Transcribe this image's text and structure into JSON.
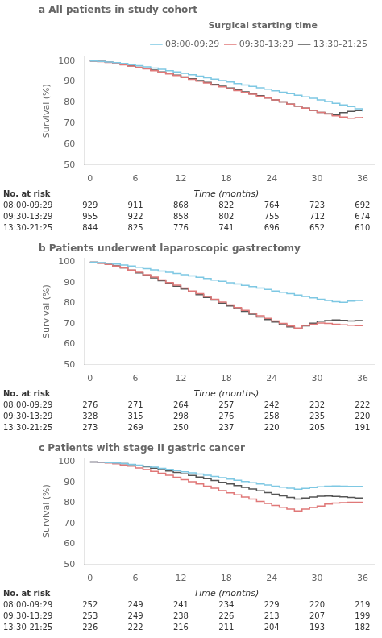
{
  "chart_data": [
    {
      "type": "step",
      "title": "a All patients in study cohort",
      "x": [
        0,
        1,
        2,
        3,
        4,
        5,
        6,
        7,
        8,
        9,
        10,
        11,
        12,
        13,
        14,
        15,
        16,
        17,
        18,
        19,
        20,
        21,
        22,
        23,
        24,
        25,
        26,
        27,
        28,
        29,
        30,
        31,
        32,
        33,
        34,
        35,
        36
      ],
      "xlabel": "Time (months)",
      "ylabel": "Survival (%)",
      "xlim": [
        -0.8,
        37.5
      ],
      "xticks": [
        0,
        6,
        12,
        18,
        24,
        30,
        36
      ],
      "ylim": [
        50,
        102
      ],
      "yticks": [
        50,
        60,
        70,
        80,
        90,
        100
      ],
      "grid": false,
      "legend": "upper right",
      "legend_title": "Surgical starting time",
      "series": [
        {
          "name": "08:00-09:29",
          "color": "#7EC8E3",
          "values": [
            100,
            99.8,
            99.5,
            99.2,
            98.8,
            98.3,
            97.8,
            97.2,
            96.6,
            96.0,
            95.4,
            94.8,
            94.1,
            93.4,
            92.7,
            92.0,
            91.3,
            90.6,
            89.9,
            89.2,
            88.5,
            87.8,
            87.1,
            86.4,
            85.7,
            85.0,
            84.3,
            83.5,
            82.8,
            82.1,
            81.3,
            80.5,
            79.7,
            78.9,
            78.1,
            77.0,
            75.8
          ]
        },
        {
          "name": "09:30-13:29",
          "color": "#E07878",
          "values": [
            100,
            99.7,
            99.3,
            98.8,
            98.2,
            97.6,
            96.9,
            96.2,
            95.4,
            94.6,
            93.8,
            93.0,
            92.1,
            91.2,
            90.3,
            89.4,
            88.5,
            87.6,
            86.7,
            85.8,
            84.9,
            84.0,
            83.1,
            82.2,
            81.3,
            80.3,
            79.3,
            78.3,
            77.3,
            76.3,
            75.3,
            74.5,
            73.7,
            73.1,
            72.5,
            72.8,
            73.2
          ]
        },
        {
          "name": "13:30-21:25",
          "color": "#555555",
          "values": [
            100,
            99.8,
            99.4,
            98.9,
            98.3,
            97.7,
            97.0,
            96.3,
            95.6,
            94.8,
            94.0,
            93.2,
            92.4,
            91.5,
            90.6,
            89.7,
            88.8,
            87.9,
            87.0,
            86.1,
            85.2,
            84.2,
            83.3,
            82.3,
            81.3,
            80.3,
            79.3,
            78.3,
            77.3,
            76.3,
            75.3,
            74.6,
            74.0,
            75.2,
            75.8,
            76.2,
            76.5
          ]
        }
      ],
      "at_risk": {
        "title": "No. at risk",
        "rows": [
          {
            "name": "08:00-09:29",
            "values": [
              929,
              911,
              868,
              822,
              764,
              723,
              692
            ]
          },
          {
            "name": "09:30-13:29",
            "values": [
              955,
              922,
              858,
              802,
              755,
              712,
              674
            ]
          },
          {
            "name": "13:30-21:25",
            "values": [
              844,
              825,
              776,
              741,
              696,
              652,
              610
            ]
          }
        ]
      }
    },
    {
      "type": "step",
      "title": "b Patients underwent laparoscopic gastrectomy",
      "x": [
        0,
        1,
        2,
        3,
        4,
        5,
        6,
        7,
        8,
        9,
        10,
        11,
        12,
        13,
        14,
        15,
        16,
        17,
        18,
        19,
        20,
        21,
        22,
        23,
        24,
        25,
        26,
        27,
        28,
        29,
        30,
        31,
        32,
        33,
        34,
        35,
        36
      ],
      "xlabel": "Time (months)",
      "ylabel": "Survival (%)",
      "xlim": [
        -0.8,
        37.5
      ],
      "xticks": [
        0,
        6,
        12,
        18,
        24,
        30,
        36
      ],
      "ylim": [
        50,
        102
      ],
      "yticks": [
        50,
        60,
        70,
        80,
        90,
        100
      ],
      "grid": false,
      "series": [
        {
          "name": "08:00-09:29",
          "color": "#7EC8E3",
          "values": [
            100,
            99.8,
            99.5,
            99.1,
            98.6,
            98.1,
            97.5,
            96.9,
            96.3,
            95.7,
            95.1,
            94.5,
            93.9,
            93.3,
            92.6,
            92.0,
            91.3,
            90.7,
            90.0,
            89.4,
            88.7,
            88.1,
            87.4,
            86.7,
            86.0,
            85.4,
            84.7,
            84.0,
            83.3,
            82.6,
            81.9,
            81.3,
            80.8,
            80.5,
            81.0,
            81.3,
            81.5
          ]
        },
        {
          "name": "09:30-13:29",
          "color": "#E07878",
          "values": [
            100,
            99.5,
            98.9,
            98.1,
            97.2,
            96.2,
            95.1,
            93.9,
            92.7,
            91.4,
            90.1,
            88.8,
            87.4,
            86.0,
            84.7,
            83.3,
            81.9,
            80.6,
            79.2,
            77.9,
            76.5,
            75.2,
            73.9,
            72.6,
            71.3,
            70.1,
            68.9,
            67.9,
            69.2,
            69.8,
            70.3,
            70.1,
            69.8,
            69.5,
            69.3,
            69.1,
            69.0
          ]
        },
        {
          "name": "13:30-21:25",
          "color": "#555555",
          "values": [
            100,
            99.6,
            99.0,
            98.2,
            97.2,
            96.1,
            94.8,
            93.6,
            92.3,
            91.0,
            89.7,
            88.3,
            86.9,
            85.6,
            84.2,
            82.8,
            81.5,
            80.1,
            78.7,
            77.4,
            76.0,
            74.7,
            73.3,
            72.0,
            70.8,
            69.6,
            68.5,
            67.5,
            69.0,
            70.2,
            71.2,
            71.5,
            71.8,
            71.6,
            71.3,
            71.5,
            71.5
          ]
        }
      ],
      "at_risk": {
        "title": "No. at risk",
        "rows": [
          {
            "name": "08:00-09:29",
            "values": [
              276,
              271,
              264,
              257,
              242,
              232,
              222
            ]
          },
          {
            "name": "09:30-13:29",
            "values": [
              328,
              315,
              298,
              276,
              258,
              235,
              220
            ]
          },
          {
            "name": "13:30-21:25",
            "values": [
              273,
              269,
              250,
              237,
              220,
              205,
              191
            ]
          }
        ]
      }
    },
    {
      "type": "step",
      "title": "c Patients with stage II gastric cancer",
      "x": [
        0,
        1,
        2,
        3,
        4,
        5,
        6,
        7,
        8,
        9,
        10,
        11,
        12,
        13,
        14,
        15,
        16,
        17,
        18,
        19,
        20,
        21,
        22,
        23,
        24,
        25,
        26,
        27,
        28,
        29,
        30,
        31,
        32,
        33,
        34,
        35,
        36
      ],
      "xlabel": "Time (months)",
      "ylabel": "Survival (%)",
      "xlim": [
        -0.8,
        37.5
      ],
      "xticks": [
        0,
        6,
        12,
        18,
        24,
        30,
        36
      ],
      "ylim": [
        50,
        102
      ],
      "yticks": [
        50,
        60,
        70,
        80,
        90,
        100
      ],
      "grid": false,
      "series": [
        {
          "name": "08:00-09:29",
          "color": "#7EC8E3",
          "values": [
            100,
            99.9,
            99.7,
            99.5,
            99.2,
            98.8,
            98.4,
            97.9,
            97.4,
            96.9,
            96.4,
            95.8,
            95.2,
            94.7,
            94.1,
            93.5,
            92.9,
            92.3,
            91.7,
            91.1,
            90.5,
            89.9,
            89.3,
            88.8,
            88.2,
            87.7,
            87.2,
            86.7,
            87.1,
            87.5,
            87.9,
            88.2,
            88.3,
            88.2,
            88.1,
            88.1,
            88.2
          ]
        },
        {
          "name": "09:30-13:29",
          "color": "#E07878",
          "values": [
            100,
            99.8,
            99.5,
            99.1,
            98.5,
            97.9,
            97.1,
            96.3,
            95.4,
            94.5,
            93.5,
            92.5,
            91.4,
            90.4,
            89.3,
            88.2,
            87.2,
            86.1,
            85.0,
            84.0,
            82.9,
            81.9,
            80.8,
            79.8,
            78.8,
            77.9,
            77.0,
            76.1,
            77.0,
            77.8,
            78.5,
            79.5,
            80.0,
            80.2,
            80.4,
            80.4,
            80.5
          ]
        },
        {
          "name": "13:30-21:25",
          "color": "#555555",
          "values": [
            100,
            99.9,
            99.8,
            99.5,
            99.2,
            98.7,
            98.2,
            97.6,
            97.0,
            96.3,
            95.6,
            94.9,
            94.2,
            93.4,
            92.6,
            91.8,
            91.0,
            90.1,
            89.3,
            88.5,
            87.6,
            86.8,
            86.0,
            85.1,
            84.3,
            83.5,
            82.7,
            81.9,
            82.4,
            82.9,
            83.3,
            83.4,
            83.2,
            83.0,
            82.7,
            82.4,
            82.2
          ]
        }
      ],
      "at_risk": {
        "title": "No. at risk",
        "rows": [
          {
            "name": "08:00-09:29",
            "values": [
              252,
              249,
              241,
              234,
              229,
              220,
              219
            ]
          },
          {
            "name": "09:30-13:29",
            "values": [
              253,
              249,
              238,
              226,
              213,
              207,
              199
            ]
          },
          {
            "name": "13:30-21:25",
            "values": [
              226,
              222,
              216,
              211,
              204,
              193,
              182
            ]
          }
        ]
      }
    }
  ]
}
